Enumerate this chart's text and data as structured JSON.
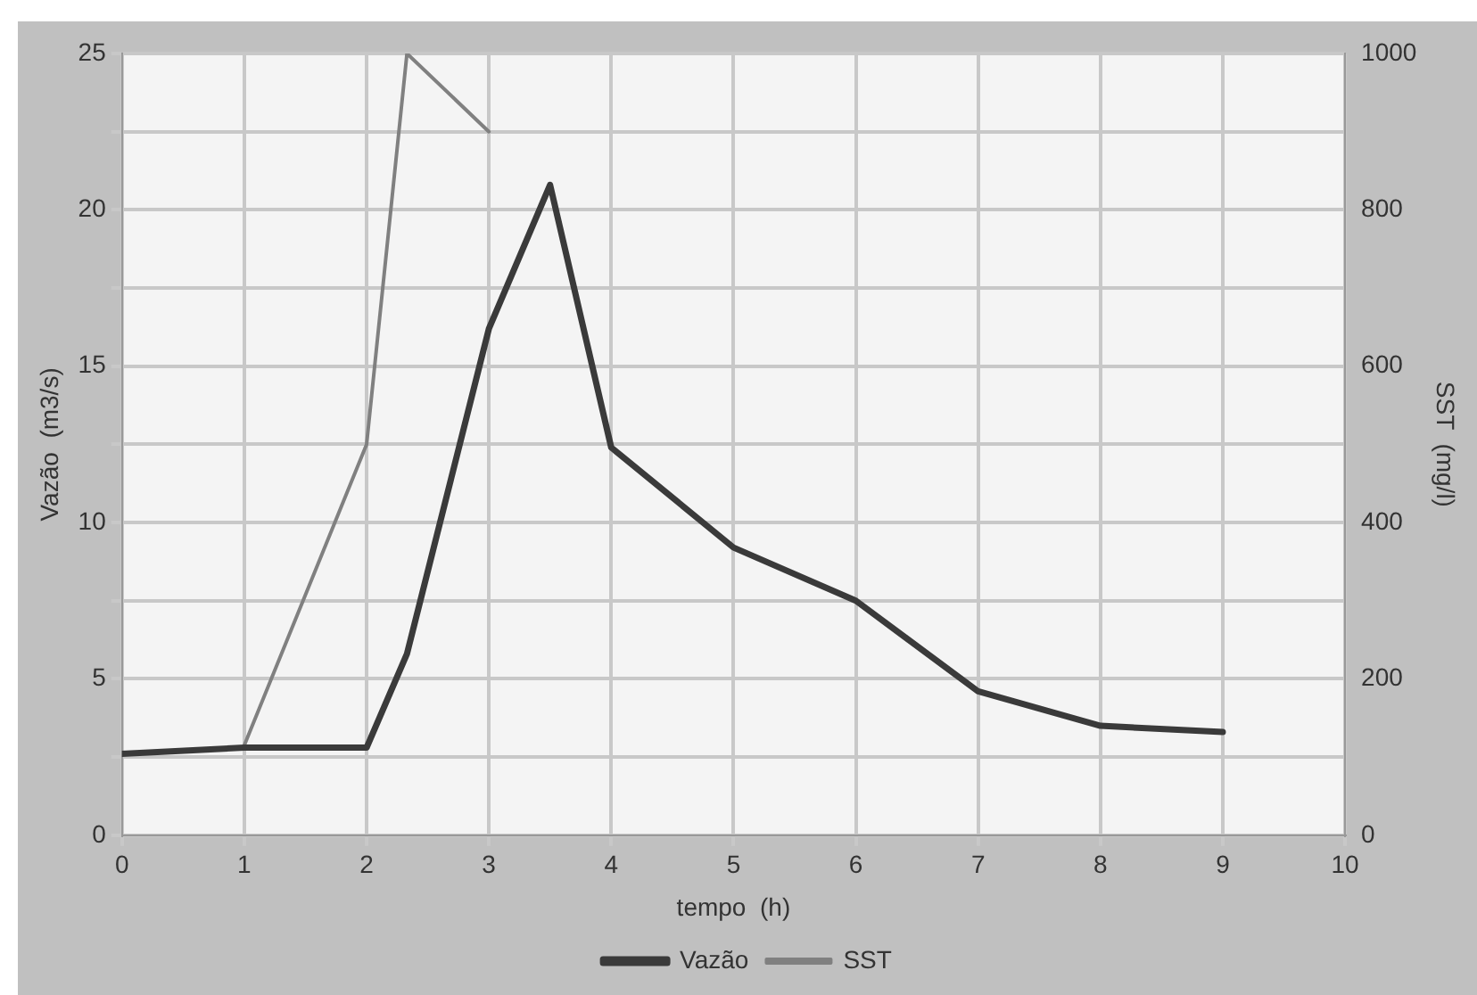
{
  "chart_data": {
    "type": "line",
    "xlabel": "tempo  (h)",
    "ylabel": "Vazão  (m3/s)",
    "y2label": "SST  (mg/l)",
    "xlim": [
      0,
      10
    ],
    "xticks": [
      0,
      1,
      2,
      3,
      4,
      5,
      6,
      7,
      8,
      9,
      10
    ],
    "ylim": [
      0,
      25
    ],
    "yticks": [
      0,
      {
        "value": 2.5,
        "label": null
      },
      5,
      {
        "value": 7.5,
        "label": null
      },
      10,
      {
        "value": 12.5,
        "label": null
      },
      15,
      {
        "value": 17.5,
        "label": null
      },
      20,
      {
        "value": 22.5,
        "label": null
      },
      25
    ],
    "y2lim": [
      0,
      1000
    ],
    "y2ticks": [
      0,
      200,
      400,
      600,
      800,
      1000
    ],
    "grid": true,
    "legend": "bottom",
    "marker": "none",
    "line_style": "solid",
    "series": [
      {
        "name": "Vazão",
        "color": "#3a3a3a",
        "x": [
          0,
          1,
          2,
          2.33,
          3,
          3.5,
          4,
          5,
          6,
          7,
          8,
          9
        ],
        "values": [
          2.6,
          2.8,
          2.8,
          5.8,
          16.2,
          20.8,
          12.4,
          9.2,
          7.5,
          4.6,
          3.5,
          3.3
        ]
      },
      {
        "name": "SST",
        "color": "#808080",
        "axis": "y2",
        "x": [
          1,
          2,
          2.33,
          3
        ],
        "values": [
          115,
          500,
          1000,
          900
        ]
      }
    ]
  }
}
